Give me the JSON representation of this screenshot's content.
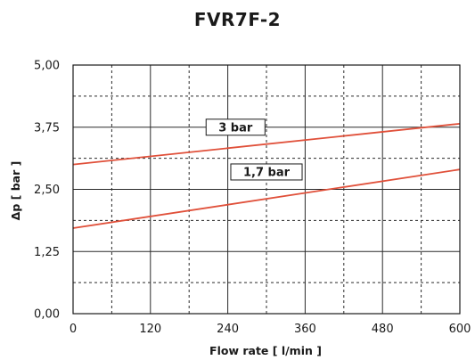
{
  "chart_data": {
    "type": "line",
    "title": "FVR7F-2",
    "xlabel": "Flow rate [ l/min ]",
    "ylabel": "Δp [ bar ]",
    "xlim": [
      0,
      600
    ],
    "ylim": [
      0,
      5
    ],
    "x_ticks": [
      "0",
      "120",
      "240",
      "360",
      "480",
      "600"
    ],
    "y_ticks": [
      "0,00",
      "1,25",
      "2,50",
      "3,75",
      "5,00"
    ],
    "x_tick_values": [
      0,
      120,
      240,
      360,
      480,
      600
    ],
    "y_tick_values": [
      0,
      1.25,
      2.5,
      3.75,
      5
    ],
    "minor_x_gridlines": [
      60,
      180,
      300,
      420,
      540
    ],
    "minor_y_gridlines": [
      0.625,
      1.875,
      3.125,
      4.375
    ],
    "grid": true,
    "series": [
      {
        "name": "3 bar",
        "color": "#e0503a",
        "x": [
          0,
          600
        ],
        "y": [
          3.0,
          3.82
        ],
        "label_anchor": [
          252,
          3.75
        ]
      },
      {
        "name": "1,7 bar",
        "color": "#e0503a",
        "x": [
          0,
          600
        ],
        "y": [
          1.72,
          2.9
        ],
        "label_anchor": [
          300,
          2.85
        ]
      }
    ]
  }
}
